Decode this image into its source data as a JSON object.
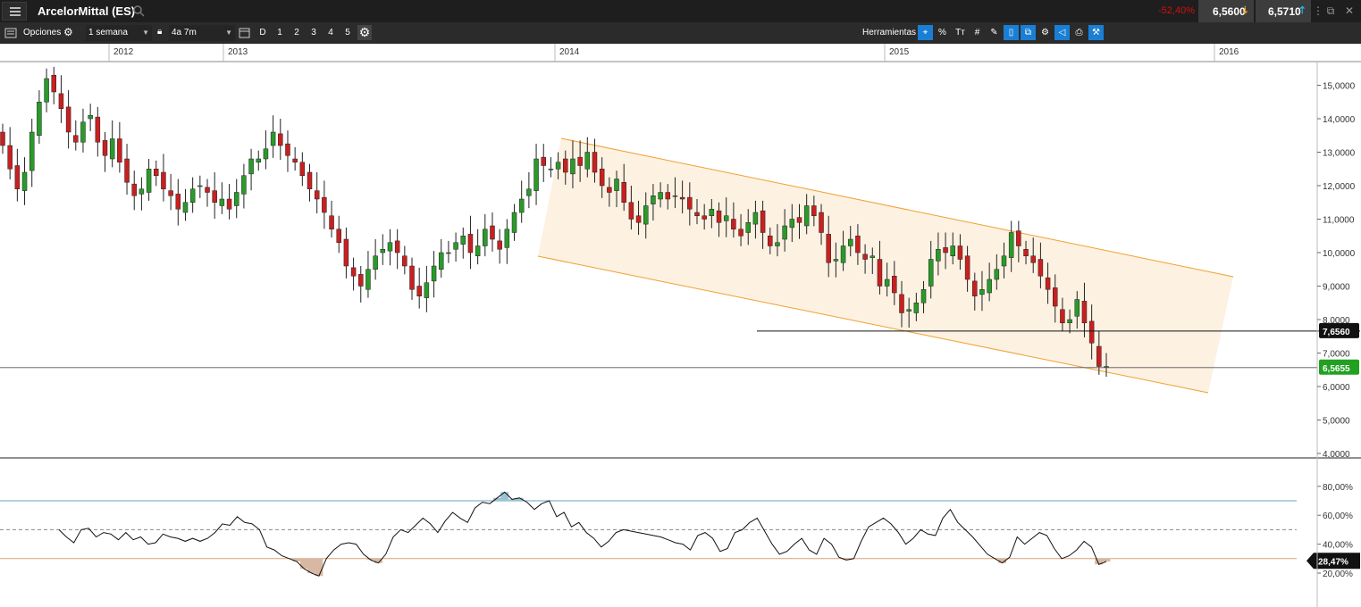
{
  "header": {
    "instrument": "ArcelorMittal (ES)",
    "change_pct": "-52,40%",
    "sell_price": "6,5600",
    "buy_price": "6,5710"
  },
  "toolbar": {
    "options_label": "Opciones",
    "interval": "1 semana",
    "range": "4a 7m",
    "periods": [
      "D",
      "1",
      "2",
      "3",
      "4",
      "5"
    ],
    "tools_label": "Herramientas",
    "tools": [
      {
        "name": "crosshair",
        "glyph": "⌖",
        "on": true
      },
      {
        "name": "percent",
        "glyph": "%",
        "on": false
      },
      {
        "name": "text",
        "glyph": "Tт",
        "on": false
      },
      {
        "name": "grid",
        "glyph": "#",
        "on": false
      },
      {
        "name": "draw",
        "glyph": "✎",
        "on": false
      },
      {
        "name": "candle",
        "glyph": "▯",
        "on": true
      },
      {
        "name": "compare",
        "glyph": "⧉",
        "on": true
      },
      {
        "name": "indicators",
        "glyph": "⚙",
        "on": false
      },
      {
        "name": "alert",
        "glyph": "◁",
        "on": true
      },
      {
        "name": "print",
        "glyph": "⎙",
        "on": false
      },
      {
        "name": "settings",
        "glyph": "⚒",
        "on": true
      }
    ]
  },
  "chart_data": {
    "type": "candlestick",
    "interval": "1 semana",
    "years": [
      "2012",
      "2013",
      "2014",
      "2015",
      "2016"
    ],
    "price_axis": [
      "15,0000",
      "14,0000",
      "13,0000",
      "12,0000",
      "11,0000",
      "10,0000",
      "9,0000",
      "8,0000",
      "7,0000",
      "6,0000",
      "5,0000",
      "4,0000"
    ],
    "ylim": [
      4,
      15.8
    ],
    "horizontal_line_label": "7,6560",
    "horizontal_line_value": 7.656,
    "current_price_label": "6,5655",
    "current_price_value": 6.5655,
    "channel_color": "#f0a030",
    "channel_fill": "#fdf1e2",
    "up_color": "#2a9a2a",
    "down_color": "#c82020",
    "closes": [
      13.2,
      12.5,
      11.9,
      12.4,
      13.6,
      14.5,
      15.2,
      14.8,
      14.3,
      13.6,
      13.3,
      13.9,
      14.1,
      13.3,
      12.9,
      13.4,
      12.7,
      12.1,
      11.7,
      11.9,
      12.5,
      12.3,
      11.9,
      11.7,
      11.3,
      11.5,
      11.9,
      12.0,
      11.8,
      11.5,
      11.6,
      11.3,
      11.8,
      12.3,
      12.8,
      12.8,
      13.1,
      13.6,
      13.2,
      12.9,
      12.7,
      12.3,
      11.9,
      11.6,
      11.2,
      10.7,
      10.3,
      9.6,
      9.3,
      9.0,
      9.5,
      9.9,
      10.1,
      10.3,
      10.0,
      9.6,
      8.9,
      8.7,
      9.1,
      9.6,
      10.0,
      10.0,
      10.3,
      10.5,
      10.0,
      10.2,
      10.7,
      10.4,
      10.1,
      10.7,
      11.2,
      11.6,
      11.9,
      12.8,
      12.6,
      12.5,
      12.7,
      12.4,
      12.8,
      12.6,
      13.0,
      12.4,
      12.0,
      11.8,
      12.2,
      11.5,
      11.0,
      10.9,
      11.4,
      11.7,
      11.8,
      11.6,
      11.7,
      11.6,
      11.3,
      11.1,
      11.0,
      11.3,
      10.9,
      11.1,
      10.7,
      10.5,
      10.9,
      11.2,
      10.6,
      10.2,
      10.3,
      10.8,
      11.0,
      10.9,
      11.4,
      11.1,
      10.6,
      9.7,
      9.8,
      10.2,
      10.4,
      10.0,
      9.8,
      9.9,
      9.0,
      9.2,
      8.8,
      8.2,
      8.3,
      8.5,
      8.9,
      9.8,
      10.1,
      10.0,
      10.2,
      9.8,
      9.2,
      8.7,
      8.9,
      9.2,
      9.5,
      9.9,
      10.6,
      10.2,
      9.9,
      9.7,
      9.3,
      8.9,
      8.4,
      7.9,
      8.0,
      8.6,
      7.9,
      7.3,
      6.6,
      6.6
    ],
    "rsi_axis": [
      "80,00%",
      "60,00%",
      "40,00%",
      "20,00%"
    ],
    "rsi_current_label": "28,47%",
    "rsi_current": 28.47,
    "rsi_upper": 70,
    "rsi_mid": 50,
    "rsi_lower": 30,
    "rsi_values": [
      50,
      45,
      41,
      50,
      51,
      45,
      48,
      47,
      43,
      48,
      43,
      45,
      40,
      41,
      47,
      45,
      44,
      42,
      44,
      42,
      44,
      48,
      54,
      53,
      59,
      55,
      54,
      50,
      38,
      36,
      32,
      30,
      28,
      23,
      20,
      18,
      30,
      36,
      40,
      41,
      40,
      33,
      29,
      27,
      33,
      45,
      50,
      48,
      53,
      58,
      54,
      48,
      56,
      62,
      58,
      55,
      65,
      69,
      68,
      72,
      76,
      71,
      72,
      69,
      64,
      68,
      70,
      59,
      62,
      52,
      55,
      48,
      44,
      38,
      42,
      48,
      50,
      49,
      48,
      47,
      46,
      45,
      43,
      41,
      40,
      36,
      46,
      48,
      44,
      35,
      37,
      48,
      50,
      55,
      58,
      49,
      40,
      33,
      35,
      40,
      44,
      36,
      33,
      44,
      40,
      31,
      29,
      30,
      42,
      52,
      55,
      58,
      54,
      48,
      40,
      44,
      50,
      47,
      46,
      58,
      64,
      55,
      50,
      45,
      39,
      33,
      30,
      27,
      31,
      45,
      40,
      44,
      48,
      46,
      37,
      30,
      32,
      36,
      42,
      38,
      26,
      28
    ]
  }
}
